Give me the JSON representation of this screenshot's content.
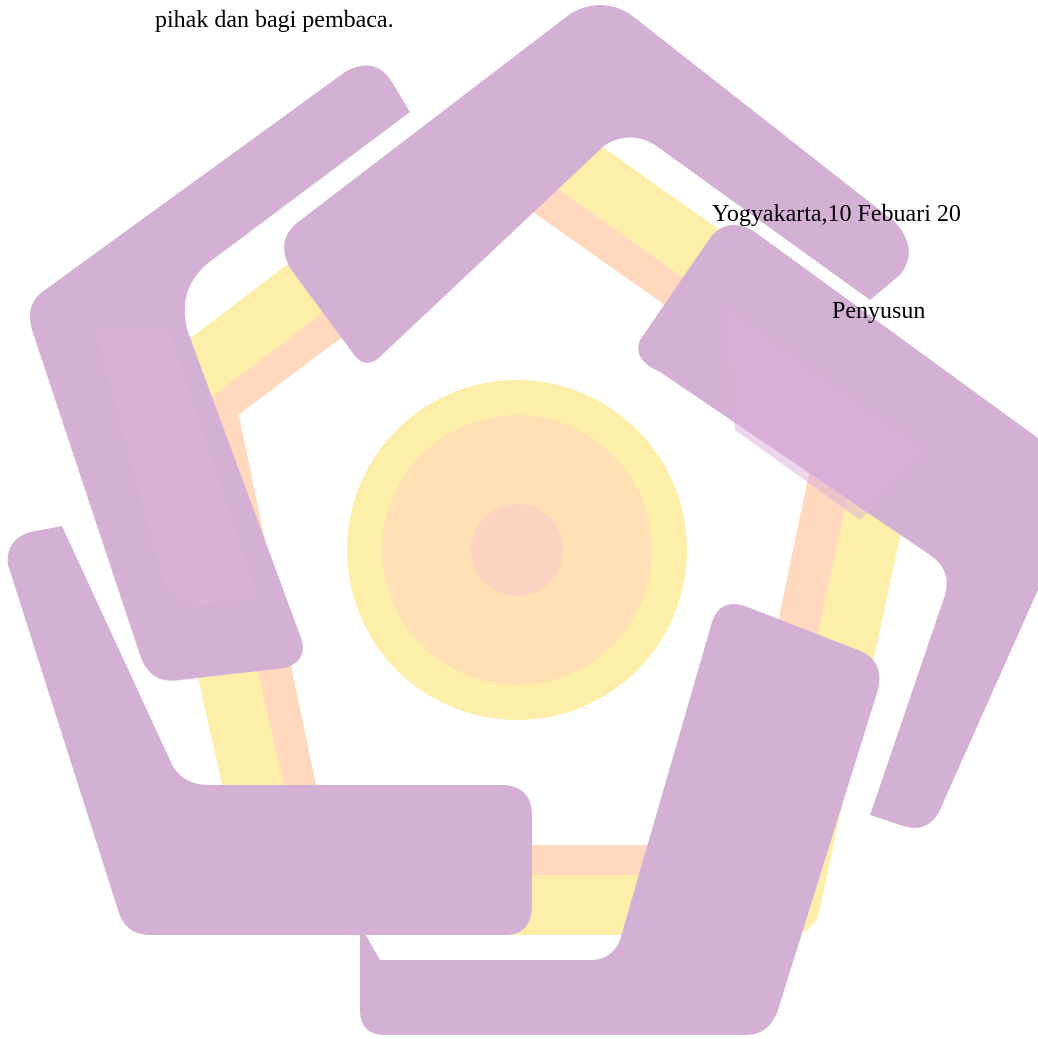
{
  "document": {
    "paragraph_tail": "pihak dan bagi pembaca.",
    "place_date": "Yogyakarta,10 Febuari 20",
    "author_label": "Penyusun"
  },
  "watermark": {
    "icon": "university-star-logo-icon",
    "colors": {
      "purple": "#D4B1D4",
      "purple_shade": "#DBAEDB",
      "yellow": "#FDEEA9",
      "peach": "#FFD4B6",
      "pink_center": "#FCD2C1"
    }
  }
}
